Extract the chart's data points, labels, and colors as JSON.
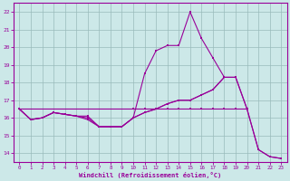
{
  "xlabel": "Windchill (Refroidissement éolien,°C)",
  "bg_color": "#cce8e8",
  "line_color": "#990099",
  "grid_color": "#99bbbb",
  "xlim": [
    -0.5,
    23.5
  ],
  "ylim": [
    13.5,
    22.5
  ],
  "xticks": [
    0,
    1,
    2,
    3,
    4,
    5,
    6,
    7,
    8,
    9,
    10,
    11,
    12,
    13,
    14,
    15,
    16,
    17,
    18,
    19,
    20,
    21,
    22,
    23
  ],
  "yticks": [
    14,
    15,
    16,
    17,
    18,
    19,
    20,
    21,
    22
  ],
  "line1_x": [
    0,
    1,
    2,
    3,
    4,
    5,
    6,
    7,
    8,
    9,
    10,
    11,
    12,
    13,
    14,
    15,
    16,
    17,
    18,
    19,
    20,
    21,
    22,
    23
  ],
  "line1_y": [
    16.5,
    15.9,
    16.0,
    16.3,
    16.2,
    16.1,
    16.1,
    15.5,
    15.5,
    15.5,
    16.0,
    16.3,
    16.5,
    16.8,
    17.0,
    17.0,
    17.3,
    17.6,
    18.3,
    18.3,
    16.5,
    14.2,
    13.8,
    13.7
  ],
  "line2_x": [
    0,
    1,
    2,
    3,
    4,
    5,
    6,
    7,
    8,
    9,
    10,
    11,
    12,
    13,
    14,
    15,
    16,
    17,
    18,
    19,
    20
  ],
  "line2_y": [
    16.5,
    15.9,
    16.0,
    16.3,
    16.2,
    16.1,
    16.0,
    15.5,
    15.5,
    15.5,
    16.0,
    16.3,
    16.5,
    16.8,
    17.0,
    17.0,
    17.3,
    17.6,
    18.3,
    18.3,
    16.5
  ],
  "line3_x": [
    0,
    1,
    2,
    3,
    4,
    5,
    6,
    7,
    8,
    9,
    10,
    11,
    12,
    13,
    14,
    15,
    16,
    17,
    18
  ],
  "line3_y": [
    16.5,
    15.9,
    16.0,
    16.3,
    16.2,
    16.1,
    15.9,
    15.5,
    15.5,
    15.5,
    16.0,
    18.5,
    19.8,
    20.1,
    20.1,
    22.0,
    20.5,
    19.4,
    18.3
  ],
  "line4_x": [
    0,
    10,
    11,
    12,
    13,
    14,
    15,
    16,
    17,
    18,
    19,
    20,
    21,
    22,
    23
  ],
  "line4_y": [
    16.5,
    16.5,
    16.5,
    16.5,
    16.5,
    16.5,
    16.5,
    16.5,
    16.5,
    16.5,
    16.5,
    16.5,
    14.2,
    13.8,
    13.7
  ]
}
